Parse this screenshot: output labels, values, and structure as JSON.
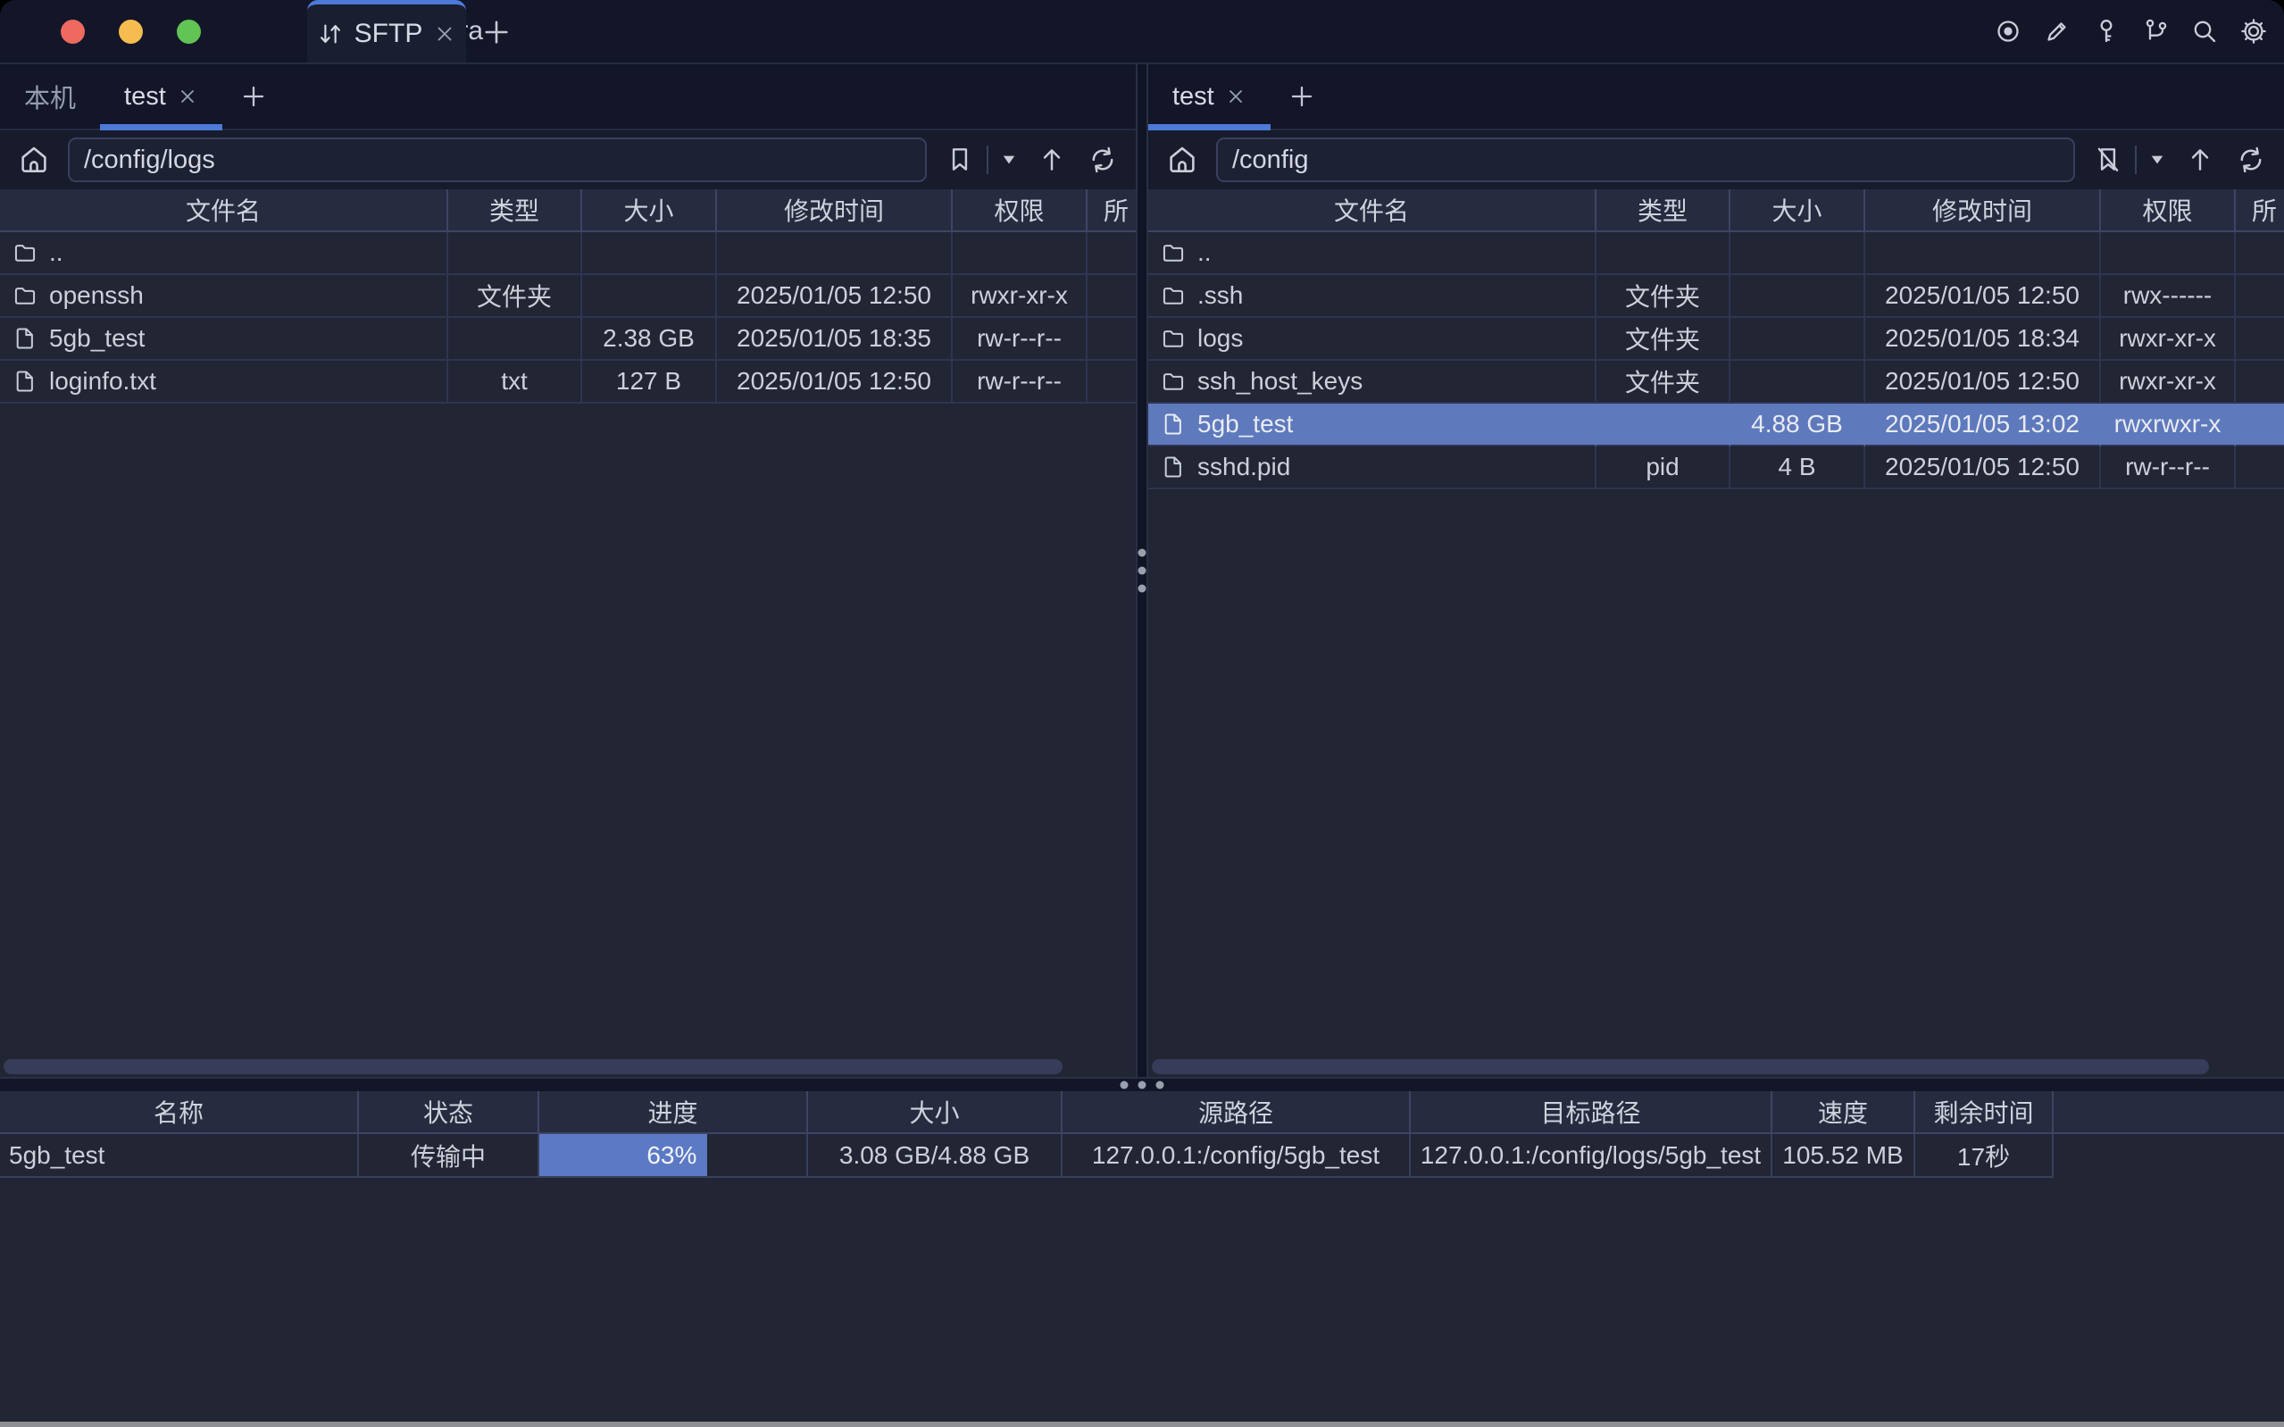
{
  "colors": {
    "accent": "#4d7ad9",
    "selection": "#5e79bc",
    "progress": "#5c7ac4"
  },
  "titlebar": {
    "app_tab": {
      "label": "Termora",
      "icon": "home-icon"
    },
    "sftp_tab": {
      "label": "SFTP",
      "icon": "transfer-arrows-icon",
      "close_icon": "close-icon"
    },
    "new_tab_icon": "plus-icon",
    "action_icons": [
      "record-icon",
      "edit-icon",
      "key-icon",
      "branch-icon",
      "search-icon",
      "settings-icon"
    ]
  },
  "left_pane": {
    "tabs": [
      {
        "label": "本机",
        "active": false,
        "closable": false
      },
      {
        "label": "test",
        "active": true,
        "closable": true
      }
    ],
    "path": "/config/logs",
    "toolbar_icons": [
      "bookmark-icon",
      "caret-down-icon",
      "arrow-up-icon",
      "refresh-icon"
    ],
    "columns": [
      "文件名",
      "类型",
      "大小",
      "修改时间",
      "权限",
      "所"
    ],
    "rows": [
      {
        "name": "..",
        "icon": "folder",
        "type": "",
        "size": "",
        "modified": "",
        "permissions": "",
        "selected": false
      },
      {
        "name": "openssh",
        "icon": "folder",
        "type": "文件夹",
        "size": "",
        "modified": "2025/01/05 12:50",
        "permissions": "rwxr-xr-x",
        "selected": false
      },
      {
        "name": "5gb_test",
        "icon": "file",
        "type": "",
        "size": "2.38 GB",
        "modified": "2025/01/05 18:35",
        "permissions": "rw-r--r--",
        "selected": false
      },
      {
        "name": "loginfo.txt",
        "icon": "file",
        "type": "txt",
        "size": "127 B",
        "modified": "2025/01/05 12:50",
        "permissions": "rw-r--r--",
        "selected": false
      }
    ]
  },
  "right_pane": {
    "tabs": [
      {
        "label": "test",
        "active": true,
        "closable": true
      }
    ],
    "path": "/config",
    "toolbar_icons": [
      "bookmark-slash-icon",
      "caret-down-icon",
      "arrow-up-icon",
      "refresh-icon"
    ],
    "columns": [
      "文件名",
      "类型",
      "大小",
      "修改时间",
      "权限",
      "所"
    ],
    "rows": [
      {
        "name": "..",
        "icon": "folder",
        "type": "",
        "size": "",
        "modified": "",
        "permissions": "",
        "selected": false
      },
      {
        "name": ".ssh",
        "icon": "folder",
        "type": "文件夹",
        "size": "",
        "modified": "2025/01/05 12:50",
        "permissions": "rwx------",
        "selected": false
      },
      {
        "name": "logs",
        "icon": "folder",
        "type": "文件夹",
        "size": "",
        "modified": "2025/01/05 18:34",
        "permissions": "rwxr-xr-x",
        "selected": false
      },
      {
        "name": "ssh_host_keys",
        "icon": "folder",
        "type": "文件夹",
        "size": "",
        "modified": "2025/01/05 12:50",
        "permissions": "rwxr-xr-x",
        "selected": false
      },
      {
        "name": "5gb_test",
        "icon": "file",
        "type": "",
        "size": "4.88 GB",
        "modified": "2025/01/05 13:02",
        "permissions": "rwxrwxr-x",
        "selected": true
      },
      {
        "name": "sshd.pid",
        "icon": "file",
        "type": "pid",
        "size": "4 B",
        "modified": "2025/01/05 12:50",
        "permissions": "rw-r--r--",
        "selected": false
      }
    ]
  },
  "transfer_panel": {
    "columns": [
      "名称",
      "状态",
      "进度",
      "大小",
      "源路径",
      "目标路径",
      "速度",
      "剩余时间"
    ],
    "rows": [
      {
        "name": "5gb_test",
        "status": "传输中",
        "progress_percent": 63,
        "progress_label": "63%",
        "size": "3.08 GB/4.88 GB",
        "source": "127.0.0.1:/config/5gb_test",
        "target": "127.0.0.1:/config/logs/5gb_test",
        "speed": "105.52 MB",
        "remaining": "17秒"
      }
    ]
  }
}
